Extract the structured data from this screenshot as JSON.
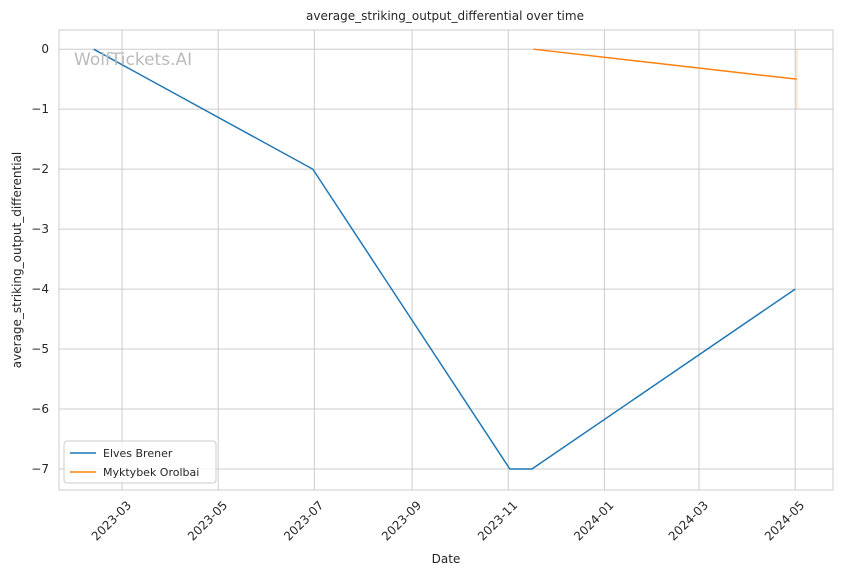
{
  "chart_data": {
    "type": "line",
    "title": "average_striking_output_differential over time",
    "xlabel": "Date",
    "ylabel": "average_striking_output_differential",
    "watermark": "WolfTickets.AI",
    "xlim": [
      "2023-01-20",
      "2024-05-25"
    ],
    "ylim": [
      -7.35,
      0.32
    ],
    "grid": true,
    "legend_position": "bottom-left",
    "x_ticks": [
      "2023-03",
      "2023-05",
      "2023-07",
      "2023-09",
      "2023-11",
      "2024-01",
      "2024-03",
      "2024-05"
    ],
    "y_ticks": [
      0,
      -1,
      -2,
      -3,
      -4,
      -5,
      -6,
      -7
    ],
    "series": [
      {
        "name": "Elves Brener",
        "color": "#1f77b4",
        "x": [
          "2023-02-11",
          "2023-06-30",
          "2023-11-02",
          "2023-11-16",
          "2024-05-01"
        ],
        "y": [
          0,
          -2,
          -7,
          -7,
          -4
        ]
      },
      {
        "name": "Myktybek Orolbai",
        "color": "#ff7f0e",
        "x": [
          "2023-11-17",
          "2024-05-02"
        ],
        "y": [
          0,
          -0.5
        ],
        "band": {
          "x": "2024-05-02",
          "low": -1,
          "high": 0
        }
      }
    ]
  }
}
